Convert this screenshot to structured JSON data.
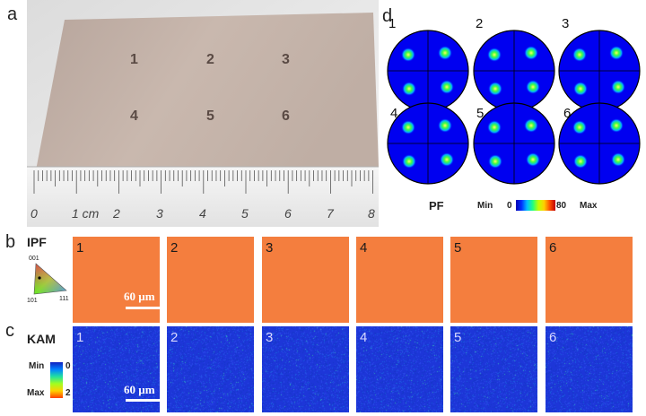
{
  "panel_labels": {
    "a": "a",
    "b": "b",
    "c": "c",
    "d": "d"
  },
  "photo": {
    "sample_labels": [
      "1",
      "2",
      "3",
      "4",
      "5",
      "6"
    ],
    "ruler_labels": [
      "0",
      "1 cm",
      "2",
      "3",
      "4",
      "5",
      "6",
      "7",
      "8"
    ]
  },
  "pf": {
    "tile_labels": [
      "1",
      "2",
      "3",
      "4",
      "5",
      "6"
    ],
    "title": "PF",
    "scale_min_label": "Min",
    "scale_min_value": "0",
    "scale_max_value": "80",
    "scale_max_label": "Max"
  },
  "ipf": {
    "title": "IPF",
    "triangle_labels": {
      "top": "001",
      "left": "101",
      "right": "111"
    },
    "tile_labels": [
      "1",
      "2",
      "3",
      "4",
      "5",
      "6"
    ],
    "scale_bar_label": "60 µm",
    "tile_color": "#f47e3e"
  },
  "kam": {
    "title": "KAM",
    "legend": {
      "min_label": "Min",
      "max_label": "Max",
      "min_value": "0",
      "max_value": "2"
    },
    "tile_labels": [
      "1",
      "2",
      "3",
      "4",
      "5",
      "6"
    ],
    "scale_bar_label": "60 µm",
    "tile_color": "#1d36d8"
  }
}
